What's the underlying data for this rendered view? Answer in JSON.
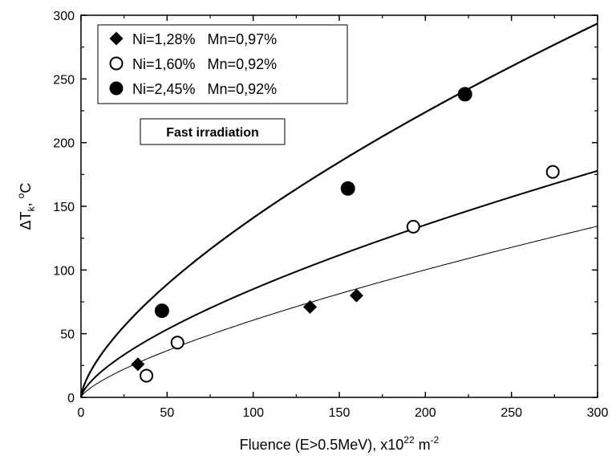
{
  "chart_data": {
    "type": "scatter",
    "xlabel": {
      "main": "Fluence (E>0.5MeV), x10",
      "sup1": "22",
      "mid": " m",
      "sup2": "-2"
    },
    "ylabel": {
      "delta": "ΔT",
      "sub": "k",
      "sep": ", ",
      "sup": "o",
      "unit": "C"
    },
    "xlim": [
      0,
      300
    ],
    "ylim": [
      0,
      300
    ],
    "xticks": [
      0,
      50,
      100,
      150,
      200,
      250,
      300
    ],
    "yticks": [
      0,
      50,
      100,
      150,
      200,
      250,
      300
    ],
    "grid": false,
    "legend_position": "top-left",
    "annotation": "Fast irradiation",
    "series": [
      {
        "name": "Ni=1,28%   Mn=0,97%",
        "marker": "diamond",
        "color": "#000000",
        "points": [
          [
            33,
            26
          ],
          [
            133,
            71
          ],
          [
            160,
            80
          ]
        ],
        "fit_curve": {
          "coefficient": 2.15,
          "exponent": 0.725,
          "stroke": "thin"
        }
      },
      {
        "name": "Ni=1,60%   Mn=0,92%",
        "marker": "open-circle",
        "color": "#000000",
        "points": [
          [
            38,
            17
          ],
          [
            56,
            43
          ],
          [
            193,
            134
          ],
          [
            274,
            177
          ]
        ],
        "fit_curve": {
          "coefficient": 3.85,
          "exponent": 0.672,
          "stroke": "medium"
        }
      },
      {
        "name": "Ni=2,45%   Mn=0,92%",
        "marker": "filled-circle",
        "color": "#000000",
        "points": [
          [
            47,
            68
          ],
          [
            155,
            164
          ],
          [
            223,
            238
          ]
        ],
        "fit_curve": {
          "coefficient": 6.5,
          "exponent": 0.668,
          "stroke": "thick"
        }
      }
    ]
  }
}
